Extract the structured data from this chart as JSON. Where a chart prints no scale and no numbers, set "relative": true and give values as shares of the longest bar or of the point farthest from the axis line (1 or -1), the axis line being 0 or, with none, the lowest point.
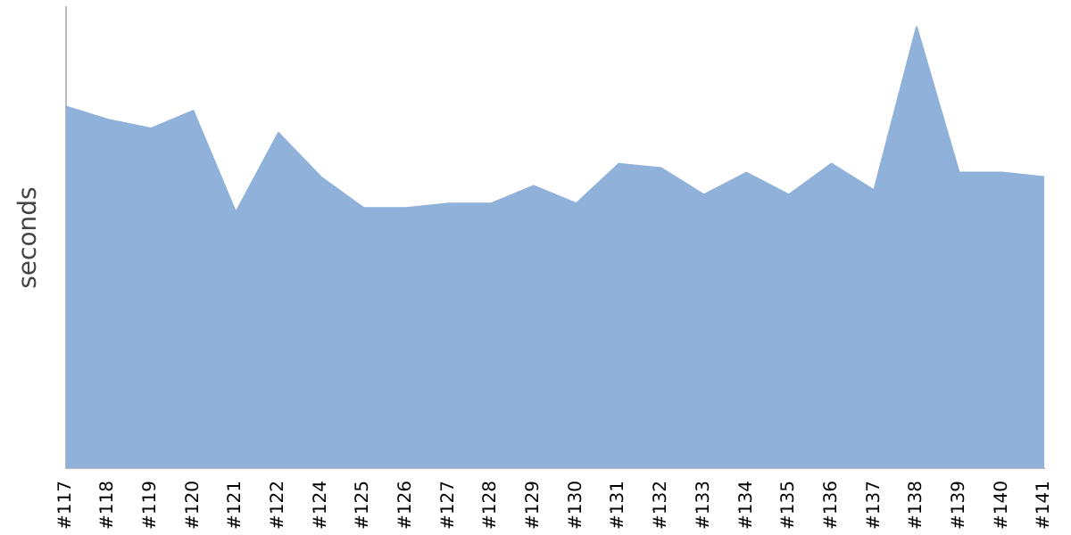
{
  "chart_data": {
    "type": "area",
    "ylabel": "seconds",
    "relative": true,
    "grid": false,
    "legend": false,
    "categories": [
      "#117",
      "#118",
      "#119",
      "#120",
      "#121",
      "#122",
      "#124",
      "#125",
      "#126",
      "#127",
      "#128",
      "#129",
      "#130",
      "#131",
      "#132",
      "#133",
      "#134",
      "#135",
      "#136",
      "#137",
      "#138",
      "#139",
      "#140",
      "#141"
    ],
    "series": [
      {
        "color": "#8fb1da",
        "values": [
          0.82,
          0.79,
          0.77,
          0.81,
          0.58,
          0.76,
          0.66,
          0.59,
          0.59,
          0.6,
          0.6,
          0.64,
          0.6,
          0.69,
          0.68,
          0.62,
          0.67,
          0.62,
          0.69,
          0.63,
          1,
          0.67,
          0.67,
          0.66
        ]
      }
    ]
  }
}
